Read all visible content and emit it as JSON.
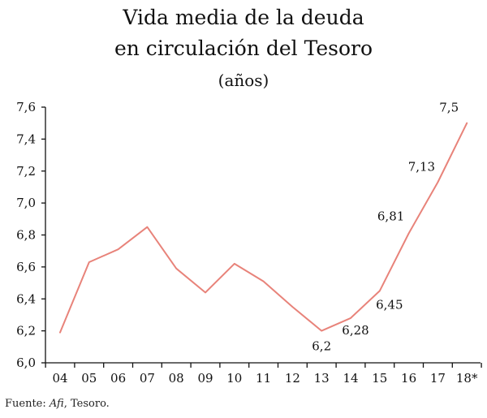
{
  "chart_data": {
    "type": "line",
    "title_lines": [
      "Vida media de la deuda",
      "en circulación del Tesoro"
    ],
    "subtitle": "(años)",
    "categories": [
      "04",
      "05",
      "06",
      "07",
      "08",
      "09",
      "10",
      "11",
      "12",
      "13",
      "14",
      "15",
      "16",
      "17",
      "18*"
    ],
    "series": [
      {
        "values": [
          6.19,
          6.63,
          6.71,
          6.85,
          6.59,
          6.44,
          6.62,
          6.51,
          6.35,
          6.2,
          6.28,
          6.45,
          6.81,
          7.13,
          7.5
        ],
        "color": "#e8837a"
      }
    ],
    "data_labels": [
      {
        "index": 9,
        "text": "6,2"
      },
      {
        "index": 10,
        "text": "6,28"
      },
      {
        "index": 11,
        "text": "6,45"
      },
      {
        "index": 12,
        "text": "6,81"
      },
      {
        "index": 13,
        "text": "7,13"
      },
      {
        "index": 14,
        "text": "7,5"
      }
    ],
    "ylim": [
      6.0,
      7.6
    ],
    "yticks": [
      6.0,
      6.2,
      6.4,
      6.6,
      6.8,
      7.0,
      7.2,
      7.4,
      7.6
    ],
    "ytick_labels": [
      "6,0",
      "6,2",
      "6,4",
      "6,6",
      "6,8",
      "7,0",
      "7,2",
      "7,4",
      "7,6"
    ],
    "grid": false,
    "xlabel": "",
    "ylabel": ""
  },
  "source": {
    "prefix": "Fuente: ",
    "italic": "Afi",
    "suffix": ", Tesoro."
  }
}
